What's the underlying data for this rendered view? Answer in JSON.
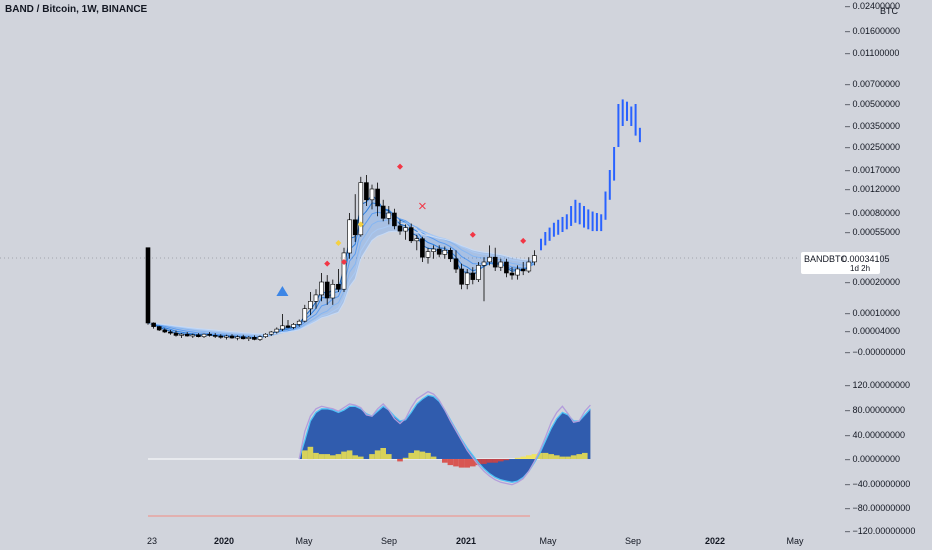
{
  "title": "BAND / Bitcoin, 1W, BINANCE",
  "unit": "BTC",
  "symbol_label": "BANDBTC",
  "last_price": "0.00034105",
  "countdown": "1d 2h",
  "colors": {
    "background": "#d1d4dc",
    "candle_up": "#ffffff",
    "candle_down": "#000000",
    "projection": "#2962ff",
    "ribbon": "#5b9cf0",
    "osc_fill": "#1e4fa8",
    "osc_yellow": "#f5e64b",
    "osc_red": "#d9403a",
    "marker_red": "#f23645",
    "marker_yellow": "#f5d142",
    "marker_blue_triangle": "#3d86e6"
  },
  "chart_data": [
    {
      "type": "line",
      "panel": "price",
      "scale": "log",
      "y_tick_labels": [
        "0.02400000",
        "0.01600000",
        "0.01100000",
        "0.00700000",
        "0.00500000",
        "0.00350000",
        "0.00250000",
        "0.00170000",
        "0.00120000",
        "0.00080000",
        "0.00055000",
        "0.00020000",
        "0.00010000",
        "0.00004000",
        "−0.00000000"
      ],
      "x_tick_labels": [
        {
          "label": "23",
          "bold": false
        },
        {
          "label": "2020",
          "bold": true
        },
        {
          "label": "May",
          "bold": false
        },
        {
          "label": "Sep",
          "bold": false
        },
        {
          "label": "2021",
          "bold": true
        },
        {
          "label": "May",
          "bold": false
        },
        {
          "label": "Sep",
          "bold": false
        },
        {
          "label": "2022",
          "bold": true
        },
        {
          "label": "May",
          "bold": false
        }
      ],
      "series": [
        {
          "name": "BANDBTC",
          "kind": "weekly_candles",
          "ohlc": [
            [
              0.0004,
              0.0004,
              5.5e-05,
              6e-05
            ],
            [
              6e-05,
              6.2e-05,
              4.5e-05,
              5e-05
            ],
            [
              5e-05,
              5.2e-05,
              4e-05,
              4.2e-05
            ],
            [
              4.2e-05,
              4.6e-05,
              3.6e-05,
              3.8e-05
            ],
            [
              3.8e-05,
              4.2e-05,
              3.3e-05,
              3.6e-05
            ],
            [
              3.6e-05,
              4.1e-05,
              3e-05,
              3.2e-05
            ],
            [
              3.2e-05,
              3.6e-05,
              2.8e-05,
              3.4e-05
            ],
            [
              3.4e-05,
              3.8e-05,
              3e-05,
              3.1e-05
            ],
            [
              3.1e-05,
              3.5e-05,
              2.8e-05,
              3.3e-05
            ],
            [
              3.3e-05,
              3.6e-05,
              2.9e-05,
              3e-05
            ],
            [
              3e-05,
              3.5e-05,
              2.8e-05,
              3.4e-05
            ],
            [
              3.4e-05,
              3.8e-05,
              3e-05,
              3.2e-05
            ],
            [
              3.2e-05,
              3.6e-05,
              2.8e-05,
              3.1e-05
            ],
            [
              3.1e-05,
              3.4e-05,
              2.7e-05,
              2.9e-05
            ],
            [
              2.9e-05,
              3.3e-05,
              2.6e-05,
              3.1e-05
            ],
            [
              3.1e-05,
              3.4e-05,
              2.7e-05,
              2.8e-05
            ],
            [
              2.8e-05,
              3.2e-05,
              2.5e-05,
              3e-05
            ],
            [
              3e-05,
              3.3e-05,
              2.6e-05,
              2.7e-05
            ],
            [
              2.7e-05,
              3.1e-05,
              2.4e-05,
              2.9e-05
            ],
            [
              2.9e-05,
              3.2e-05,
              2.5e-05,
              2.6e-05
            ],
            [
              2.6e-05,
              3.2e-05,
              2.4e-05,
              3e-05
            ],
            [
              3e-05,
              3.6e-05,
              2.8e-05,
              3.4e-05
            ],
            [
              3.4e-05,
              4e-05,
              3.1e-05,
              3.8e-05
            ],
            [
              3.8e-05,
              4.8e-05,
              3.5e-05,
              4.4e-05
            ],
            [
              4.4e-05,
              9.5e-05,
              4e-05,
              5.2e-05
            ],
            [
              5.2e-05,
              7e-05,
              4.6e-05,
              4.8e-05
            ],
            [
              4.8e-05,
              6e-05,
              4.4e-05,
              5.6e-05
            ],
            [
              5.6e-05,
              7.2e-05,
              5e-05,
              6.6e-05
            ],
            [
              6.6e-05,
              0.00012,
              6.2e-05,
              0.00011
            ],
            [
              0.00011,
              0.00016,
              9e-05,
              0.00013
            ],
            [
              0.00013,
              0.00017,
              0.00011,
              0.00015
            ],
            [
              0.00015,
              0.00024,
              0.00013,
              0.0002
            ],
            [
              0.0002,
              0.00023,
              0.00012,
              0.00014
            ],
            [
              0.00014,
              0.00021,
              0.00012,
              0.00019
            ],
            [
              0.00019,
              0.00026,
              0.00016,
              0.00017
            ],
            [
              0.00017,
              0.0004,
              0.00016,
              0.00036
            ],
            [
              0.00036,
              0.0008,
              0.00032,
              0.0007
            ],
            [
              0.0007,
              0.0011,
              0.00045,
              0.00052
            ],
            [
              0.00052,
              0.0015,
              0.0005,
              0.00135
            ],
            [
              0.00135,
              0.00155,
              0.0009,
              0.001
            ],
            [
              0.001,
              0.0013,
              0.00085,
              0.0012
            ],
            [
              0.0012,
              0.00135,
              0.00075,
              0.0009
            ],
            [
              0.0009,
              0.001,
              0.00068,
              0.00072
            ],
            [
              0.00072,
              0.0009,
              0.00064,
              0.0008
            ],
            [
              0.0008,
              0.00086,
              0.00058,
              0.00062
            ],
            [
              0.00062,
              0.0007,
              0.00052,
              0.00056
            ],
            [
              0.00056,
              0.00064,
              0.00047,
              0.0006
            ],
            [
              0.0006,
              0.00065,
              0.00044,
              0.00046
            ],
            [
              0.00046,
              0.00052,
              0.00038,
              0.00048
            ],
            [
              0.00048,
              0.0005,
              0.0003,
              0.00033
            ],
            [
              0.00033,
              0.0004,
              0.00029,
              0.00037
            ],
            [
              0.00037,
              0.00042,
              0.00032,
              0.00039
            ],
            [
              0.00039,
              0.00042,
              0.00033,
              0.00035
            ],
            [
              0.00035,
              0.00041,
              0.00032,
              0.00038
            ],
            [
              0.00038,
              0.0004,
              0.0003,
              0.00032
            ],
            [
              0.00032,
              0.00038,
              0.00024,
              0.00026
            ],
            [
              0.00026,
              0.00029,
              0.00017,
              0.00019
            ],
            [
              0.00019,
              0.00026,
              0.00017,
              0.00024
            ],
            [
              0.00024,
              0.00027,
              0.00019,
              0.00021
            ],
            [
              0.00021,
              0.0003,
              0.0002,
              0.00028
            ],
            [
              0.00028,
              0.00033,
              0.00013,
              0.0003
            ],
            [
              0.0003,
              0.00042,
              0.00028,
              0.00033
            ],
            [
              0.00033,
              0.0004,
              0.00025,
              0.00027
            ],
            [
              0.00027,
              0.00032,
              0.00025,
              0.0003
            ],
            [
              0.0003,
              0.00032,
              0.00022,
              0.00024
            ],
            [
              0.00024,
              0.00027,
              0.00021,
              0.00023
            ],
            [
              0.00023,
              0.00028,
              0.00021,
              0.00026
            ],
            [
              0.00026,
              0.0003,
              0.00023,
              0.00025
            ],
            [
              0.00025,
              0.00033,
              0.00024,
              0.0003
            ],
            [
              0.0003,
              0.00038,
              0.00028,
              0.00034105
            ]
          ]
        },
        {
          "name": "Projection",
          "kind": "projected_bars",
          "ranges": [
            [
              0.00038,
              0.00048
            ],
            [
              0.00042,
              0.00055
            ],
            [
              0.00046,
              0.0006
            ],
            [
              0.0005,
              0.00066
            ],
            [
              0.00052,
              0.0007
            ],
            [
              0.00055,
              0.00074
            ],
            [
              0.00058,
              0.00078
            ],
            [
              0.00062,
              0.0009
            ],
            [
              0.00066,
              0.001
            ],
            [
              0.00064,
              0.00095
            ],
            [
              0.0006,
              0.0009
            ],
            [
              0.00058,
              0.00085
            ],
            [
              0.00056,
              0.00082
            ],
            [
              0.00056,
              0.0008
            ],
            [
              0.00056,
              0.00078
            ],
            [
              0.0007,
              0.00115
            ],
            [
              0.001,
              0.0017
            ],
            [
              0.0014,
              0.0025
            ],
            [
              0.0025,
              0.005
            ],
            [
              0.0035,
              0.0054
            ],
            [
              0.0038,
              0.0052
            ],
            [
              0.0035,
              0.0048
            ],
            [
              0.003,
              0.005
            ],
            [
              0.0027,
              0.0034
            ]
          ]
        }
      ],
      "markers": [
        {
          "shape": "triangle-up",
          "color": "blue",
          "at_index": 24,
          "value": 0.00016
        },
        {
          "shape": "diamond",
          "color": "red",
          "at_index": 32,
          "value": 0.00029
        },
        {
          "shape": "diamond",
          "color": "red",
          "at_index": 35,
          "value": 0.0003
        },
        {
          "shape": "diamond",
          "color": "yellow",
          "at_index": 34,
          "value": 0.00044
        },
        {
          "shape": "diamond",
          "color": "yellow",
          "at_index": 38,
          "value": 0.00064
        },
        {
          "shape": "diamond",
          "color": "red",
          "at_index": 45,
          "value": 0.0018
        },
        {
          "shape": "cross",
          "color": "red",
          "at_index": 49,
          "value": 0.0009
        },
        {
          "shape": "diamond",
          "color": "red",
          "at_index": 58,
          "value": 0.00052
        },
        {
          "shape": "diamond",
          "color": "red",
          "at_index": 67,
          "value": 0.00046
        }
      ]
    },
    {
      "type": "area",
      "panel": "oscillator",
      "y_tick_labels": [
        "120.00000000",
        "80.00000000",
        "40.00000000",
        "0.00000000",
        "−40.00000000",
        "−80.00000000",
        "−120.00000000"
      ],
      "ylim": [
        -120,
        120
      ],
      "series": [
        {
          "name": "fast",
          "values": [
            null,
            null,
            null,
            null,
            null,
            null,
            null,
            null,
            null,
            null,
            null,
            null,
            null,
            null,
            null,
            null,
            null,
            null,
            null,
            null,
            null,
            null,
            null,
            null,
            null,
            null,
            null,
            0,
            45,
            70,
            82,
            86,
            84,
            82,
            78,
            84,
            90,
            88,
            84,
            72,
            70,
            82,
            90,
            80,
            66,
            58,
            66,
            84,
            98,
            104,
            110,
            106,
            96,
            80,
            62,
            46,
            30,
            14,
            2,
            -10,
            -20,
            -28,
            -34,
            -38,
            -40,
            -42,
            -38,
            -32,
            -20,
            -4,
            14,
            36,
            60,
            76,
            86,
            74,
            60,
            62,
            78,
            88
          ]
        },
        {
          "name": "slow",
          "values": [
            null,
            null,
            null,
            null,
            null,
            null,
            null,
            null,
            null,
            null,
            null,
            null,
            null,
            null,
            null,
            null,
            null,
            null,
            null,
            null,
            null,
            null,
            null,
            null,
            null,
            null,
            null,
            0,
            30,
            62,
            76,
            82,
            82,
            80,
            76,
            80,
            86,
            86,
            82,
            74,
            70,
            78,
            86,
            80,
            70,
            62,
            64,
            76,
            90,
            98,
            104,
            102,
            94,
            80,
            64,
            48,
            32,
            18,
            6,
            -6,
            -16,
            -24,
            -30,
            -34,
            -36,
            -38,
            -36,
            -30,
            -20,
            -6,
            10,
            30,
            50,
            66,
            76,
            72,
            62,
            62,
            72,
            82
          ]
        },
        {
          "name": "histogram",
          "values": [
            null,
            null,
            null,
            null,
            null,
            null,
            null,
            null,
            null,
            null,
            null,
            null,
            null,
            null,
            null,
            null,
            null,
            null,
            null,
            null,
            null,
            null,
            null,
            null,
            null,
            null,
            null,
            0,
            14,
            20,
            10,
            8,
            8,
            6,
            8,
            12,
            14,
            6,
            4,
            0,
            8,
            14,
            18,
            8,
            0,
            -4,
            2,
            10,
            14,
            12,
            10,
            4,
            0,
            -6,
            -10,
            -12,
            -14,
            -14,
            -12,
            -10,
            -8,
            -6,
            -6,
            -4,
            -2,
            0,
            2,
            4,
            6,
            8,
            10,
            10,
            8,
            6,
            4,
            4,
            6,
            8,
            10
          ]
        }
      ]
    }
  ]
}
